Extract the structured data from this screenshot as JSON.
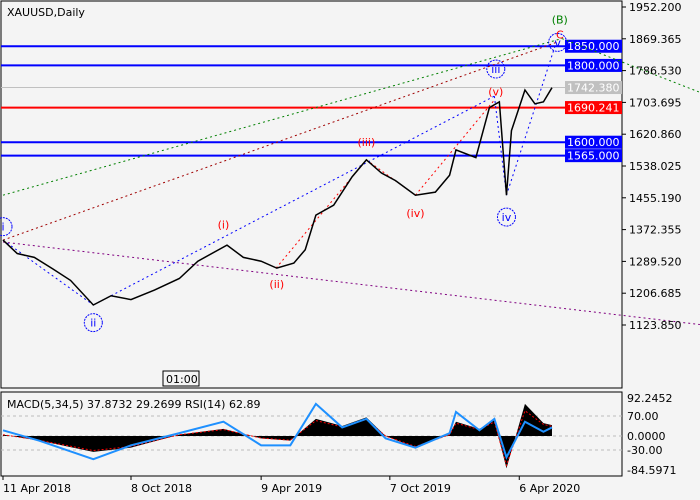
{
  "chart_data": [
    {
      "type": "line",
      "title": "XAUUSD,Daily",
      "ylim": [
        1123.85,
        1952.2
      ],
      "y_ticks": [
        "1952.200",
        "1869.365",
        "1786.530",
        "1703.695",
        "1620.860",
        "1538.025",
        "1455.190",
        "1372.355",
        "1289.520",
        "1206.685",
        "1123.850"
      ],
      "x_ticks": [
        {
          "date": "2018-04-11",
          "label": "11 Apr 2018"
        },
        {
          "date": "2018-10-08",
          "label": "8 Oct 2018"
        },
        {
          "date": "2019-04-09",
          "label": "9 Apr 2019"
        },
        {
          "date": "2019-10-07",
          "label": "7 Oct 2019"
        },
        {
          "date": "2020-04-06",
          "label": "6 Apr 2020"
        }
      ],
      "series": [
        {
          "color": "#000000",
          "points": [
            [
              "2018-04-11",
              1345
            ],
            [
              "2018-05-01",
              1310
            ],
            [
              "2018-05-25",
              1300
            ],
            [
              "2018-06-20",
              1270
            ],
            [
              "2018-07-15",
              1240
            ],
            [
              "2018-08-16",
              1176
            ],
            [
              "2018-09-10",
              1200
            ],
            [
              "2018-10-08",
              1190
            ],
            [
              "2018-11-10",
              1215
            ],
            [
              "2018-12-15",
              1245
            ],
            [
              "2019-01-10",
              1290
            ],
            [
              "2019-02-20",
              1332
            ],
            [
              "2019-03-15",
              1300
            ],
            [
              "2019-04-09",
              1290
            ],
            [
              "2019-05-01",
              1272
            ],
            [
              "2019-05-25",
              1285
            ],
            [
              "2019-06-10",
              1320
            ],
            [
              "2019-06-25",
              1410
            ],
            [
              "2019-07-20",
              1436
            ],
            [
              "2019-08-15",
              1510
            ],
            [
              "2019-09-04",
              1554
            ],
            [
              "2019-09-25",
              1520
            ],
            [
              "2019-10-15",
              1500
            ],
            [
              "2019-11-12",
              1462
            ],
            [
              "2019-12-10",
              1470
            ],
            [
              "2019-12-30",
              1514
            ],
            [
              "2020-01-08",
              1580
            ],
            [
              "2020-02-05",
              1560
            ],
            [
              "2020-02-24",
              1690
            ],
            [
              "2020-03-09",
              1705
            ],
            [
              "2020-03-19",
              1462
            ],
            [
              "2020-03-26",
              1630
            ],
            [
              "2020-04-14",
              1736
            ],
            [
              "2020-04-28",
              1700
            ],
            [
              "2020-05-10",
              1705
            ],
            [
              "2020-05-22",
              1742
            ]
          ]
        }
      ],
      "horizontal_levels": [
        {
          "value": 1850.0,
          "label": "1850.000",
          "color": "#0000ff"
        },
        {
          "value": 1800.0,
          "label": "1800.000",
          "color": "#0000ff"
        },
        {
          "value": 1742.38,
          "label": "1742.380",
          "color": "#c0c0c0"
        },
        {
          "value": 1690.241,
          "label": "1690.241",
          "color": "#ff0000"
        },
        {
          "value": 1600.0,
          "label": "1600.000",
          "color": "#0000ff"
        },
        {
          "value": 1565.0,
          "label": "1565.000",
          "color": "#0000ff"
        }
      ],
      "trendlines": [
        {
          "color": "#800080",
          "from": [
            "2018-04-11",
            1340
          ],
          "to": [
            "2020-12-16",
            1125
          ]
        },
        {
          "color": "#008000",
          "from": [
            "2018-04-11",
            1462
          ],
          "to": [
            "2020-06-05",
            1870
          ]
        },
        {
          "color": "#008000",
          "from": [
            "2020-06-05",
            1870
          ],
          "to": [
            "2020-12-16",
            1730
          ]
        },
        {
          "color": "#a00000",
          "from": [
            "2018-04-11",
            1345
          ],
          "to": [
            "2020-05-28",
            1860
          ]
        },
        {
          "color": "#0000ff",
          "from": [
            "2018-04-11",
            1345
          ],
          "to": [
            "2018-08-16",
            1176
          ]
        },
        {
          "color": "#0000ff",
          "from": [
            "2018-08-16",
            1176
          ],
          "to": [
            "2020-03-02",
            1720
          ]
        },
        {
          "color": "#0000ff",
          "from": [
            "2020-03-02",
            1720
          ],
          "to": [
            "2020-03-19",
            1462
          ]
        },
        {
          "color": "#0000ff",
          "from": [
            "2020-03-19",
            1462
          ],
          "to": [
            "2020-05-28",
            1860
          ]
        },
        {
          "color": "#ff0000",
          "from": [
            "2019-04-30",
            1272
          ],
          "to": [
            "2019-09-04",
            1554
          ]
        },
        {
          "color": "#ff0000",
          "from": [
            "2019-09-04",
            1554
          ],
          "to": [
            "2019-11-12",
            1462
          ]
        },
        {
          "color": "#ff0000",
          "from": [
            "2019-11-12",
            1462
          ],
          "to": [
            "2020-03-02",
            1710
          ]
        }
      ],
      "wave_labels": [
        {
          "text": "i",
          "circled": true,
          "color": "#0000ff",
          "date": "2018-04-11",
          "price": 1380
        },
        {
          "text": "ii",
          "circled": true,
          "color": "#0000ff",
          "date": "2018-08-16",
          "price": 1130
        },
        {
          "text": "(i)",
          "color": "#ff0000",
          "date": "2019-02-15",
          "price": 1385
        },
        {
          "text": "(ii)",
          "color": "#ff0000",
          "date": "2019-05-01",
          "price": 1230
        },
        {
          "text": "(iii)",
          "color": "#ff0000",
          "date": "2019-09-04",
          "price": 1600
        },
        {
          "text": "(iv)",
          "color": "#ff0000",
          "date": "2019-11-12",
          "price": 1415
        },
        {
          "text": "(v)",
          "color": "#ff0000",
          "date": "2020-03-04",
          "price": 1750
        },
        {
          "text": "iii",
          "circled": true,
          "color": "#0000ff",
          "date": "2020-03-04",
          "price": 1775
        },
        {
          "text": "iv",
          "circled": true,
          "color": "#0000ff",
          "date": "2020-03-19",
          "price": 1405
        },
        {
          "text": "v",
          "circled": true,
          "color": "#0000ff",
          "date": "2020-05-30",
          "price": 1860
        },
        {
          "text": "C",
          "color": "#ff0000",
          "date": "2020-06-02",
          "price": 1880
        },
        {
          "text": "(B)",
          "color": "#008000",
          "date": "2020-06-02",
          "price": 1920
        }
      ],
      "time_marker": "01:00"
    },
    {
      "type": "line",
      "title": "MACD(5,34,5) 37.8732 29.2699 RSI(14) 62.89",
      "ylim": [
        -84.5971,
        92.2452
      ],
      "y_ticks": [
        "92.2452",
        "70.00",
        "0.0000",
        "-30.00",
        "-84.5971"
      ],
      "macd": [
        [
          "2018-04-11",
          5
        ],
        [
          "2018-06-01",
          -10
        ],
        [
          "2018-08-16",
          -35
        ],
        [
          "2018-10-08",
          -25
        ],
        [
          "2018-12-15",
          5
        ],
        [
          "2019-02-15",
          25
        ],
        [
          "2019-04-09",
          -5
        ],
        [
          "2019-05-20",
          -10
        ],
        [
          "2019-06-25",
          60
        ],
        [
          "2019-08-01",
          35
        ],
        [
          "2019-09-04",
          65
        ],
        [
          "2019-10-01",
          0
        ],
        [
          "2019-11-12",
          -25
        ],
        [
          "2019-12-30",
          5
        ],
        [
          "2020-01-08",
          50
        ],
        [
          "2020-02-10",
          25
        ],
        [
          "2020-03-02",
          55
        ],
        [
          "2020-03-19",
          -80
        ],
        [
          "2020-04-14",
          85
        ],
        [
          "2020-05-10",
          45
        ],
        [
          "2020-05-22",
          37.87
        ]
      ],
      "rsi": [
        [
          "2018-04-11",
          20
        ],
        [
          "2018-06-01",
          -10
        ],
        [
          "2018-08-16",
          -55
        ],
        [
          "2018-10-08",
          -20
        ],
        [
          "2018-12-15",
          10
        ],
        [
          "2019-02-15",
          50
        ],
        [
          "2019-04-09",
          -20
        ],
        [
          "2019-05-20",
          -20
        ],
        [
          "2019-06-25",
          85
        ],
        [
          "2019-08-01",
          30
        ],
        [
          "2019-09-04",
          60
        ],
        [
          "2019-10-01",
          -5
        ],
        [
          "2019-11-12",
          -25
        ],
        [
          "2019-12-30",
          10
        ],
        [
          "2020-01-08",
          75
        ],
        [
          "2020-02-10",
          20
        ],
        [
          "2020-03-02",
          60
        ],
        [
          "2020-03-19",
          -50
        ],
        [
          "2020-04-14",
          50
        ],
        [
          "2020-05-10",
          15
        ],
        [
          "2020-05-22",
          30
        ]
      ]
    }
  ]
}
